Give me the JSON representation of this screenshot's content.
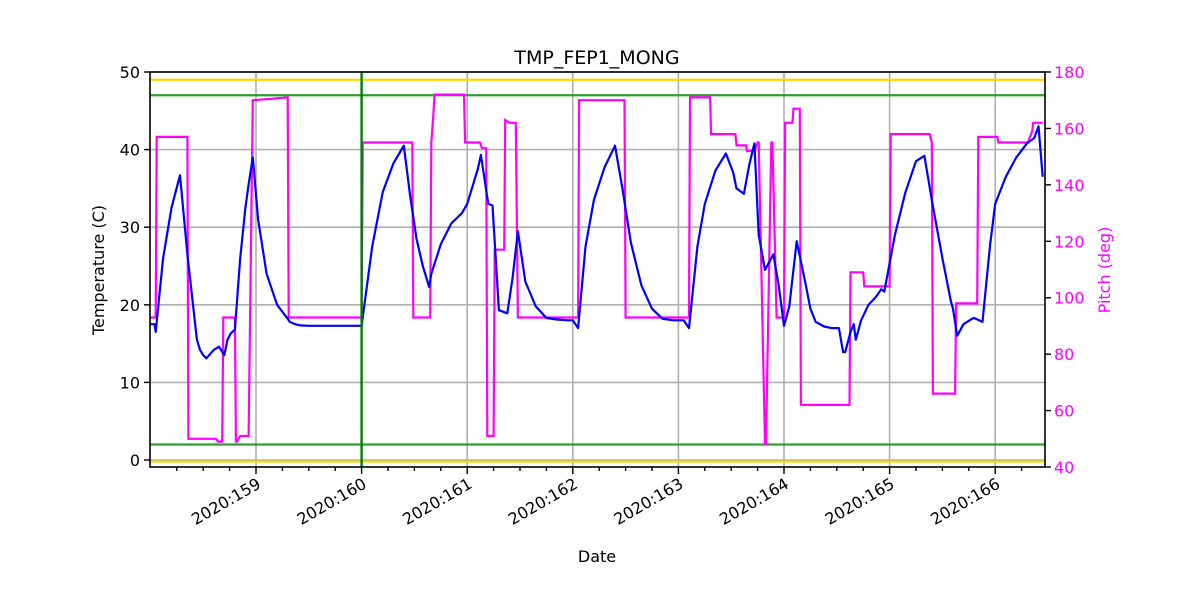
{
  "chart_data": {
    "type": "line",
    "title": "TMP_FEP1_MONG",
    "xlabel": "Date",
    "ylabel": "Temperature (C)",
    "ylabel_right": "Pitch (deg)",
    "x_unit": "day-of-year 2020",
    "xlim": [
      158.0,
      166.45
    ],
    "ylim": [
      -0.5,
      50
    ],
    "ylim_right": [
      40,
      180
    ],
    "grid": true,
    "x_ticks": [
      {
        "value": 159,
        "label": "2020:159"
      },
      {
        "value": 160,
        "label": "2020:160"
      },
      {
        "value": 161,
        "label": "2020:161"
      },
      {
        "value": 162,
        "label": "2020:162"
      },
      {
        "value": 163,
        "label": "2020:163"
      },
      {
        "value": 164,
        "label": "2020:164"
      },
      {
        "value": 165,
        "label": "2020:165"
      },
      {
        "value": 166,
        "label": "2020:166"
      }
    ],
    "y_ticks": [
      0,
      10,
      20,
      30,
      40,
      50
    ],
    "y_ticks_right": [
      40,
      60,
      80,
      100,
      120,
      140,
      160,
      180
    ],
    "reference_lines": [
      {
        "name": "planning-limit-high",
        "axis": "left",
        "y": 47,
        "color": "#2ca02c"
      },
      {
        "name": "planning-limit-low",
        "axis": "left",
        "y": 2,
        "color": "#2ca02c"
      },
      {
        "name": "yellow-limit-high",
        "axis": "left",
        "y": 49,
        "color": "#ffd700"
      },
      {
        "name": "yellow-limit-low",
        "axis": "left",
        "y": -0.2,
        "color": "#ffd700"
      }
    ],
    "vertical_lines": [
      {
        "name": "current-time-marker",
        "x": 160.0,
        "color": "#008000"
      }
    ],
    "series": [
      {
        "name": "TMP_FEP1_MONG",
        "axis": "left",
        "color": "#0000ff",
        "x": [
          158.0,
          158.04,
          158.05,
          158.12,
          158.2,
          158.28,
          158.35,
          158.44,
          158.47,
          158.5,
          158.53,
          158.6,
          158.65,
          158.7,
          158.73,
          158.76,
          158.8,
          158.85,
          158.9,
          158.93,
          158.97,
          159.02,
          159.1,
          159.2,
          159.3,
          159.32,
          159.37,
          159.42,
          159.5,
          159.55,
          159.6,
          159.65,
          159.7,
          159.8,
          159.9,
          160.0,
          160.0,
          160.1,
          160.2,
          160.3,
          160.4,
          160.46,
          160.52,
          160.58,
          160.64,
          160.66,
          160.75,
          160.85,
          160.95,
          161.0,
          161.1,
          161.13,
          161.2,
          161.24,
          161.3,
          161.38,
          161.43,
          161.48,
          161.55,
          161.65,
          161.75,
          161.85,
          161.95,
          162.0,
          162.05,
          162.05,
          162.12,
          162.2,
          162.3,
          162.4,
          162.47,
          162.55,
          162.65,
          162.75,
          162.85,
          162.95,
          163.05,
          163.1,
          163.1,
          163.18,
          163.25,
          163.35,
          163.45,
          163.52,
          163.55,
          163.62,
          163.67,
          163.72,
          163.76,
          163.82,
          163.86,
          163.9,
          163.95,
          164.0,
          164.05,
          164.12,
          164.2,
          164.25,
          164.3,
          164.38,
          164.45,
          164.52,
          164.56,
          164.58,
          164.63,
          164.66,
          164.68,
          164.73,
          164.8,
          164.87,
          164.92,
          164.95,
          164.95,
          165.05,
          165.15,
          165.25,
          165.33,
          165.4,
          165.5,
          165.58,
          165.6,
          165.64,
          165.7,
          165.78,
          165.8,
          165.88,
          165.95,
          166.0,
          166.1,
          166.2,
          166.3,
          166.37,
          166.41,
          166.45
        ],
        "y": [
          17.5,
          17.5,
          16.5,
          26.0,
          32.5,
          36.7,
          26.5,
          15.5,
          14.2,
          13.5,
          13.1,
          14.2,
          14.6,
          13.5,
          15.5,
          16.3,
          16.8,
          26.0,
          32.5,
          35.5,
          39.0,
          31.0,
          24.0,
          20.0,
          18.2,
          17.8,
          17.5,
          17.35,
          17.3,
          17.3,
          17.3,
          17.3,
          17.3,
          17.3,
          17.3,
          17.3,
          17.3,
          27.5,
          34.5,
          38.2,
          40.5,
          34.0,
          28.5,
          25.0,
          22.3,
          24.0,
          27.8,
          30.5,
          31.8,
          33.0,
          37.5,
          39.3,
          33.0,
          32.8,
          19.3,
          18.9,
          23.5,
          29.5,
          23.0,
          19.8,
          18.3,
          18.1,
          18.0,
          18.0,
          17.0,
          17.0,
          27.5,
          33.5,
          37.7,
          40.5,
          35.0,
          28.0,
          22.5,
          19.5,
          18.2,
          18.0,
          18.0,
          17.0,
          17.0,
          27.5,
          33.0,
          37.3,
          39.5,
          37.0,
          35.0,
          34.3,
          38.0,
          40.8,
          29.0,
          24.5,
          25.5,
          26.5,
          22.5,
          17.3,
          19.8,
          28.2,
          23.0,
          19.5,
          17.8,
          17.2,
          17.0,
          17.0,
          13.9,
          13.9,
          16.5,
          17.5,
          15.5,
          18.0,
          20.0,
          21.0,
          22.0,
          21.7,
          21.7,
          29.0,
          34.5,
          38.5,
          39.2,
          33.5,
          26.0,
          20.5,
          19.5,
          16.0,
          17.5,
          18.2,
          18.3,
          17.8,
          27.5,
          33.0,
          36.5,
          39.0,
          40.8,
          41.5,
          43.0,
          36.5
        ]
      },
      {
        "name": "Pitch",
        "axis": "right",
        "color": "#ff00ff",
        "x": [
          158.0,
          158.05,
          158.06,
          158.35,
          158.36,
          158.62,
          158.64,
          158.68,
          158.69,
          158.8,
          158.81,
          158.82,
          158.85,
          158.86,
          158.92,
          158.93,
          158.97,
          158.98,
          159.3,
          159.31,
          160.0,
          160.0,
          160.01,
          160.48,
          160.49,
          160.65,
          160.66,
          160.68,
          160.69,
          160.97,
          160.98,
          161.12,
          161.13,
          161.14,
          161.18,
          161.19,
          161.25,
          161.26,
          161.28,
          161.29,
          161.35,
          161.36,
          161.4,
          161.41,
          161.45,
          161.46,
          161.48,
          161.49,
          162.05,
          162.05,
          162.06,
          162.49,
          162.5,
          163.1,
          163.11,
          163.3,
          163.31,
          163.54,
          163.55,
          163.63,
          163.64,
          163.65,
          163.72,
          163.75,
          163.76,
          163.82,
          163.83,
          163.88,
          163.89,
          163.93,
          163.94,
          164.0,
          164.01,
          164.08,
          164.09,
          164.15,
          164.16,
          164.35,
          164.36,
          164.48,
          164.49,
          164.62,
          164.63,
          164.75,
          164.76,
          165.0,
          165.01,
          165.38,
          165.4,
          165.41,
          165.62,
          165.63,
          165.83,
          165.84,
          166.02,
          166.03,
          166.3,
          166.31,
          166.35,
          166.36,
          166.45
        ],
        "y": [
          93,
          93,
          157,
          157,
          50,
          50,
          49,
          49,
          93,
          93,
          49,
          49,
          51,
          51,
          51,
          51,
          170,
          170,
          171,
          93,
          93,
          93,
          155,
          155,
          93,
          93,
          155,
          165,
          172,
          172,
          155,
          155,
          154,
          153,
          153,
          51,
          51,
          117,
          117,
          117,
          117,
          163,
          162,
          162,
          162,
          162,
          93,
          93,
          93,
          93,
          170,
          170,
          93,
          93,
          171,
          171,
          158,
          158,
          154,
          154,
          154,
          152,
          152,
          155,
          155,
          48,
          48,
          155,
          155,
          93,
          93,
          93,
          162,
          162,
          167,
          167,
          62,
          62,
          62,
          62,
          62,
          62,
          109,
          109,
          104,
          104,
          158,
          158,
          155,
          66,
          66,
          98,
          98,
          157,
          157,
          155,
          155,
          155,
          159,
          162,
          162
        ]
      }
    ]
  }
}
